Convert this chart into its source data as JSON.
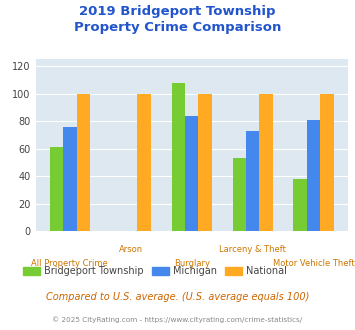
{
  "title_line1": "2019 Bridgeport Township",
  "title_line2": "Property Crime Comparison",
  "title_color": "#2255cc",
  "categories": [
    "All Property Crime",
    "Arson",
    "Burglary",
    "Larceny & Theft",
    "Motor Vehicle Theft"
  ],
  "bridgeport": [
    61,
    0,
    108,
    53,
    38
  ],
  "michigan": [
    76,
    0,
    84,
    73,
    81
  ],
  "national": [
    100,
    100,
    100,
    100,
    100
  ],
  "bar_colors": {
    "bridgeport": "#77cc33",
    "michigan": "#4488ee",
    "national": "#ffaa22"
  },
  "ylim": [
    0,
    125
  ],
  "yticks": [
    0,
    20,
    40,
    60,
    80,
    100,
    120
  ],
  "legend_labels": [
    "Bridgeport Township",
    "Michigan",
    "National"
  ],
  "footnote1": "Compared to U.S. average. (U.S. average equals 100)",
  "footnote2": "© 2025 CityRating.com - https://www.cityrating.com/crime-statistics/",
  "footnote1_color": "#cc6600",
  "footnote2_color": "#888888",
  "xticklabel_color": "#cc7700",
  "bg_color": "#dde8f0",
  "bar_width": 0.22
}
